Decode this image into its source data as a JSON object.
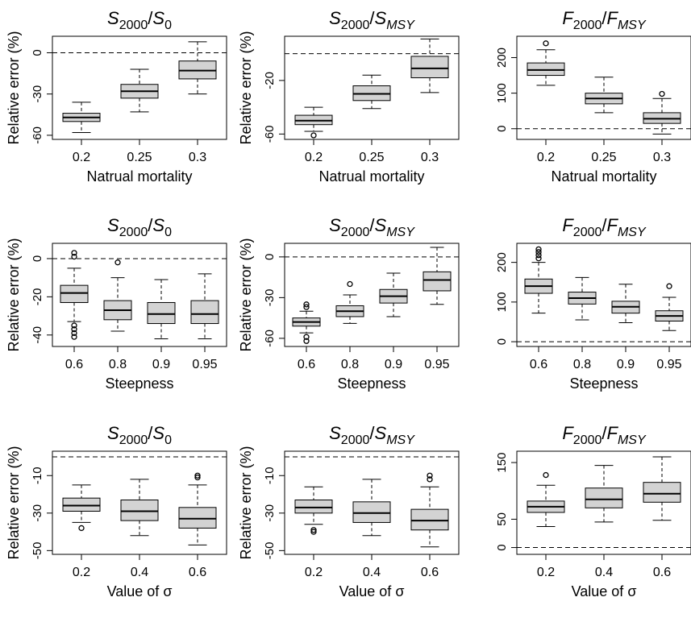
{
  "chart_data": [
    {
      "type": "box",
      "row": 0,
      "col": 0,
      "title": {
        "var": "S",
        "sub1": "2000",
        "sep": "/",
        "var2": "S",
        "sub2": "0"
      },
      "ylabel": "Relative error (%)",
      "xlabel": "Natrual mortality",
      "categories": [
        "0.2",
        "0.25",
        "0.3"
      ],
      "ylim": [
        -63,
        12
      ],
      "yticks": [
        0,
        -30,
        -60
      ],
      "reference_line": 0,
      "boxes": [
        {
          "whisker_low": -58,
          "q1": -50,
          "median": -47,
          "q3": -44,
          "whisker_high": -36,
          "outliers": []
        },
        {
          "whisker_low": -43,
          "q1": -33,
          "median": -28,
          "q3": -23,
          "whisker_high": -12,
          "outliers": []
        },
        {
          "whisker_low": -30,
          "q1": -19,
          "median": -13,
          "q3": -6,
          "whisker_high": 8,
          "outliers": []
        }
      ]
    },
    {
      "type": "box",
      "row": 0,
      "col": 1,
      "title": {
        "var": "S",
        "sub1": "2000",
        "sep": "/",
        "var2": "S",
        "sub2": "MSY"
      },
      "ylabel": "Relative error (%)",
      "xlabel": "Natrual mortality",
      "categories": [
        "0.2",
        "0.25",
        "0.3"
      ],
      "ylim": [
        -64,
        13
      ],
      "yticks": [
        -20,
        -60
      ],
      "reference_line": 0,
      "boxes": [
        {
          "whisker_low": -58,
          "q1": -53,
          "median": -50,
          "q3": -46,
          "whisker_high": -40,
          "outliers": [
            -61
          ]
        },
        {
          "whisker_low": -41,
          "q1": -35,
          "median": -30,
          "q3": -24,
          "whisker_high": -16,
          "outliers": []
        },
        {
          "whisker_low": -29,
          "q1": -18,
          "median": -11,
          "q3": -2,
          "whisker_high": 11,
          "outliers": []
        }
      ]
    },
    {
      "type": "box",
      "row": 0,
      "col": 2,
      "title": {
        "var": "F",
        "sub1": "2000",
        "sep": "/",
        "var2": "F",
        "sub2": "MSY"
      },
      "ylabel": "",
      "xlabel": "Natrual mortality",
      "categories": [
        "0.2",
        "0.25",
        "0.3"
      ],
      "ylim": [
        -30,
        260
      ],
      "yticks": [
        0,
        100,
        200
      ],
      "reference_line": 0,
      "boxes": [
        {
          "whisker_low": 122,
          "q1": 150,
          "median": 165,
          "q3": 185,
          "whisker_high": 222,
          "outliers": [
            240
          ]
        },
        {
          "whisker_low": 45,
          "q1": 70,
          "median": 85,
          "q3": 100,
          "whisker_high": 145,
          "outliers": []
        },
        {
          "whisker_low": -15,
          "q1": 15,
          "median": 28,
          "q3": 45,
          "whisker_high": 85,
          "outliers": [
            98
          ]
        }
      ]
    },
    {
      "type": "box",
      "row": 1,
      "col": 0,
      "title": {
        "var": "S",
        "sub1": "2000",
        "sep": "/",
        "var2": "S",
        "sub2": "0"
      },
      "ylabel": "Relative error (%)",
      "xlabel": "Steepness",
      "categories": [
        "0.6",
        "0.8",
        "0.9",
        "0.95"
      ],
      "ylim": [
        -46,
        8
      ],
      "yticks": [
        0,
        -20,
        -40
      ],
      "reference_line": 0,
      "boxes": [
        {
          "whisker_low": -33,
          "q1": -23,
          "median": -18,
          "q3": -14,
          "whisker_high": -5,
          "outliers": [
            3,
            1,
            -35,
            -37,
            -39,
            -41
          ]
        },
        {
          "whisker_low": -38,
          "q1": -32,
          "median": -27,
          "q3": -22,
          "whisker_high": -10,
          "outliers": [
            -2
          ]
        },
        {
          "whisker_low": -42,
          "q1": -34,
          "median": -29,
          "q3": -23,
          "whisker_high": -11,
          "outliers": []
        },
        {
          "whisker_low": -42,
          "q1": -34,
          "median": -29,
          "q3": -22,
          "whisker_high": -8,
          "outliers": []
        }
      ]
    },
    {
      "type": "box",
      "row": 1,
      "col": 1,
      "title": {
        "var": "S",
        "sub1": "2000",
        "sep": "/",
        "var2": "S",
        "sub2": "MSY"
      },
      "ylabel": "Relative error (%)",
      "xlabel": "Steepness",
      "categories": [
        "0.6",
        "0.8",
        "0.9",
        "0.95"
      ],
      "ylim": [
        -66,
        10
      ],
      "yticks": [
        0,
        -30,
        -60
      ],
      "reference_line": 0,
      "boxes": [
        {
          "whisker_low": -56,
          "q1": -51,
          "median": -48,
          "q3": -45,
          "whisker_high": -40,
          "outliers": [
            -35,
            -37,
            -59,
            -62
          ]
        },
        {
          "whisker_low": -49,
          "q1": -44,
          "median": -40,
          "q3": -36,
          "whisker_high": -28,
          "outliers": [
            -20
          ]
        },
        {
          "whisker_low": -44,
          "q1": -34,
          "median": -29,
          "q3": -24,
          "whisker_high": -12,
          "outliers": []
        },
        {
          "whisker_low": -35,
          "q1": -25,
          "median": -17,
          "q3": -11,
          "whisker_high": 7,
          "outliers": []
        }
      ]
    },
    {
      "type": "box",
      "row": 1,
      "col": 2,
      "title": {
        "var": "F",
        "sub1": "2000",
        "sep": "/",
        "var2": "F",
        "sub2": "MSY"
      },
      "ylabel": "",
      "xlabel": "Steepness",
      "categories": [
        "0.6",
        "0.8",
        "0.9",
        "0.95"
      ],
      "ylim": [
        -12,
        248
      ],
      "yticks": [
        0,
        100,
        200
      ],
      "reference_line": 0,
      "boxes": [
        {
          "whisker_low": 72,
          "q1": 122,
          "median": 140,
          "q3": 158,
          "whisker_high": 200,
          "outliers": [
            210,
            218,
            226,
            233
          ]
        },
        {
          "whisker_low": 55,
          "q1": 95,
          "median": 110,
          "q3": 125,
          "whisker_high": 162,
          "outliers": []
        },
        {
          "whisker_low": 48,
          "q1": 72,
          "median": 88,
          "q3": 102,
          "whisker_high": 145,
          "outliers": []
        },
        {
          "whisker_low": 28,
          "q1": 52,
          "median": 65,
          "q3": 78,
          "whisker_high": 112,
          "outliers": [
            140
          ]
        }
      ]
    },
    {
      "type": "box",
      "row": 2,
      "col": 0,
      "title": {
        "var": "S",
        "sub1": "2000",
        "sep": "/",
        "var2": "S",
        "sub2": "0"
      },
      "ylabel": "Relative error (%)",
      "xlabel": "Value of",
      "xlabel_symbol": "σ",
      "categories": [
        "0.2",
        "0.4",
        "0.6"
      ],
      "ylim": [
        -52,
        3
      ],
      "yticks": [
        -10,
        -30,
        -50
      ],
      "reference_line": 0,
      "boxes": [
        {
          "whisker_low": -35,
          "q1": -29,
          "median": -26,
          "q3": -22,
          "whisker_high": -15,
          "outliers": [
            -38
          ]
        },
        {
          "whisker_low": -42,
          "q1": -34,
          "median": -29,
          "q3": -23,
          "whisker_high": -12,
          "outliers": []
        },
        {
          "whisker_low": -47,
          "q1": -38,
          "median": -33,
          "q3": -27,
          "whisker_high": -15,
          "outliers": [
            -10,
            -11
          ]
        }
      ]
    },
    {
      "type": "box",
      "row": 2,
      "col": 1,
      "title": {
        "var": "S",
        "sub1": "2000",
        "sep": "/",
        "var2": "S",
        "sub2": "MSY"
      },
      "ylabel": "Relative error (%)",
      "xlabel": "Value of",
      "xlabel_symbol": "σ",
      "categories": [
        "0.2",
        "0.4",
        "0.6"
      ],
      "ylim": [
        -52,
        3
      ],
      "yticks": [
        -10,
        -30,
        -50
      ],
      "reference_line": 0,
      "boxes": [
        {
          "whisker_low": -36,
          "q1": -30,
          "median": -27,
          "q3": -23,
          "whisker_high": -16,
          "outliers": [
            -39,
            -40
          ]
        },
        {
          "whisker_low": -42,
          "q1": -35,
          "median": -30,
          "q3": -24,
          "whisker_high": -12,
          "outliers": []
        },
        {
          "whisker_low": -48,
          "q1": -39,
          "median": -34,
          "q3": -28,
          "whisker_high": -16,
          "outliers": [
            -10,
            -12
          ]
        }
      ]
    },
    {
      "type": "box",
      "row": 2,
      "col": 2,
      "title": {
        "var": "F",
        "sub1": "2000",
        "sep": "/",
        "var2": "F",
        "sub2": "MSY"
      },
      "ylabel": "",
      "xlabel": "Value of",
      "xlabel_symbol": "σ",
      "categories": [
        "0.2",
        "0.4",
        "0.6"
      ],
      "ylim": [
        -12,
        170
      ],
      "yticks": [
        0,
        50,
        150
      ],
      "reference_line": 0,
      "boxes": [
        {
          "whisker_low": 37,
          "q1": 62,
          "median": 72,
          "q3": 82,
          "whisker_high": 110,
          "outliers": [
            128
          ]
        },
        {
          "whisker_low": 45,
          "q1": 70,
          "median": 85,
          "q3": 105,
          "whisker_high": 145,
          "outliers": []
        },
        {
          "whisker_low": 48,
          "q1": 80,
          "median": 95,
          "q3": 115,
          "whisker_high": 160,
          "outliers": []
        }
      ]
    }
  ],
  "colors": {
    "box_fill": "#d3d3d3",
    "line": "#000000"
  }
}
